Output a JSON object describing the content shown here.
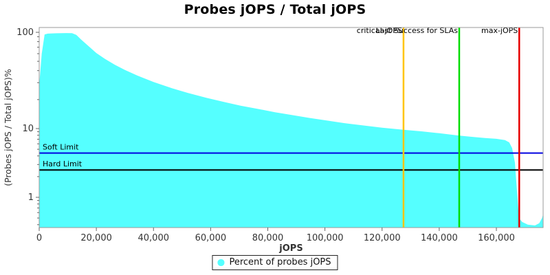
{
  "chart_data": {
    "type": "area",
    "title": "Probes jOPS / Total jOPS",
    "xlabel": "jOPS",
    "ylabel": "(Probes jOPS / Total jOPS)%",
    "x_ticks": [
      0,
      20000,
      40000,
      60000,
      80000,
      100000,
      120000,
      140000,
      160000
    ],
    "y_ticks": [
      100,
      10,
      1
    ],
    "y_minor_ticks": [
      90,
      80,
      70,
      60,
      50,
      40,
      30,
      20,
      9,
      8,
      7,
      6,
      5,
      4,
      3,
      2,
      0.9,
      0.8,
      0.7,
      0.6,
      0.5,
      0.4
    ],
    "y_scale": "log",
    "xlim": [
      0,
      176400
    ],
    "ylim": [
      0.36,
      112
    ],
    "grid": false,
    "legend_position": "bottom",
    "series": [
      {
        "name": "Percent of probes jOPS",
        "color": "#55FFFF",
        "points": [
          [
            0,
            28
          ],
          [
            900,
            60
          ],
          [
            1900,
            95
          ],
          [
            3000,
            97
          ],
          [
            6000,
            97.8
          ],
          [
            9500,
            98.2
          ],
          [
            11500,
            98
          ],
          [
            13000,
            94
          ],
          [
            14700,
            84
          ],
          [
            17000,
            73
          ],
          [
            20000,
            61
          ],
          [
            23000,
            53
          ],
          [
            26500,
            46
          ],
          [
            30000,
            40.6
          ],
          [
            34400,
            35.5
          ],
          [
            40000,
            30.5
          ],
          [
            46400,
            26.3
          ],
          [
            52000,
            23.5
          ],
          [
            58500,
            20.9
          ],
          [
            65000,
            18.8
          ],
          [
            70500,
            17.3
          ],
          [
            76000,
            16.1
          ],
          [
            82500,
            14.8
          ],
          [
            88000,
            13.9
          ],
          [
            94500,
            12.9
          ],
          [
            100000,
            12.2
          ],
          [
            106600,
            11.4
          ],
          [
            113000,
            10.8
          ],
          [
            120000,
            10.2
          ],
          [
            127500,
            9.6
          ],
          [
            134000,
            9.1
          ],
          [
            140000,
            8.55
          ],
          [
            147000,
            7.9
          ],
          [
            152000,
            7.55
          ],
          [
            156000,
            7.3
          ],
          [
            160000,
            7.1
          ],
          [
            163000,
            6.8
          ],
          [
            164500,
            6.3
          ],
          [
            165500,
            5.2
          ],
          [
            166500,
            3.2
          ],
          [
            167300,
            1.1
          ],
          [
            167900,
            0.5
          ],
          [
            169000,
            0.44
          ],
          [
            171000,
            0.4
          ],
          [
            173500,
            0.39
          ],
          [
            175000,
            0.42
          ],
          [
            176000,
            0.5
          ],
          [
            176400,
            0.58
          ]
        ]
      }
    ],
    "vlines": [
      {
        "label": "critical-jOPS",
        "jops": 127500,
        "color": "#FFC400"
      },
      {
        "label": "Last Success for SLAs",
        "jops": 147000,
        "color": "#00DD00"
      },
      {
        "label": "max-jOPS",
        "jops": 168000,
        "color": "#E60000"
      }
    ],
    "hlines": [
      {
        "label": "Soft Limit",
        "percent": 4.4,
        "color": "#0000E0"
      },
      {
        "label": "Hard Limit",
        "percent": 2.5,
        "color": "#000000"
      }
    ]
  },
  "legend": {
    "label": "Percent of probes jOPS",
    "swatch_color": "#55FFFF"
  },
  "style_colors": {
    "plot_border": "#999999",
    "tick": "#666666",
    "tick_label": "#333333",
    "marker_label": "#000000"
  }
}
